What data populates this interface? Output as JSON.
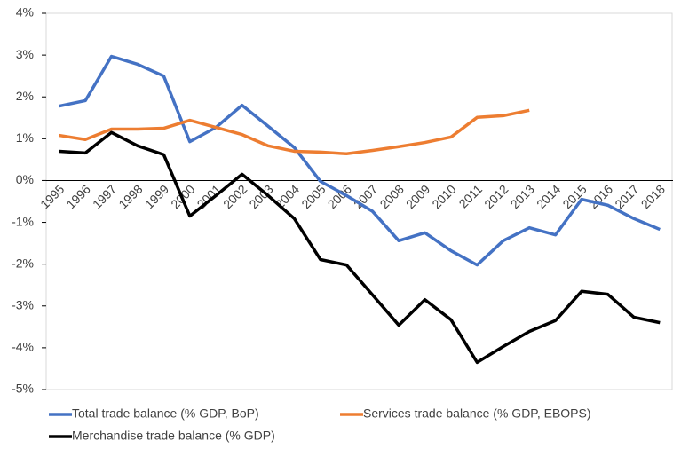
{
  "chart_data": {
    "type": "line",
    "categories": [
      "1995",
      "1996",
      "1997",
      "1998",
      "1999",
      "2000",
      "2001",
      "2002",
      "2003",
      "2004",
      "2005",
      "2006",
      "2007",
      "2008",
      "2009",
      "2010",
      "2011",
      "2012",
      "2013",
      "2014",
      "2015",
      "2016",
      "2017",
      "2018"
    ],
    "series": [
      {
        "name": "Total trade balance (% GDP, BoP)",
        "color": "#4472c4",
        "values": [
          1.78,
          1.91,
          2.97,
          2.78,
          2.5,
          0.93,
          1.27,
          1.8,
          1.3,
          0.79,
          -0.02,
          -0.36,
          -0.74,
          -1.44,
          -1.25,
          -1.68,
          -2.02,
          -1.44,
          -1.13,
          -1.3,
          -0.45,
          -0.59,
          -0.91,
          -1.17
        ]
      },
      {
        "name": "Services trade balance (% GDP, EBOPS)",
        "color": "#ed7d31",
        "values": [
          1.08,
          0.98,
          1.23,
          1.23,
          1.25,
          1.44,
          1.27,
          1.1,
          0.83,
          0.7,
          0.68,
          0.64,
          0.72,
          0.81,
          0.91,
          1.04,
          1.51,
          1.55,
          1.68,
          null,
          null,
          null,
          null,
          null
        ]
      },
      {
        "name": "Merchandise trade balance (% GDP)",
        "color": "#000000",
        "values": [
          0.7,
          0.66,
          1.15,
          0.83,
          0.62,
          -0.85,
          -0.36,
          0.15,
          -0.36,
          -0.91,
          -1.89,
          -2.02,
          -2.74,
          -3.46,
          -2.85,
          -3.33,
          -4.35,
          -3.97,
          -3.61,
          -3.35,
          -2.65,
          -2.72,
          -3.27,
          -3.4
        ]
      }
    ],
    "ylim": [
      -5,
      4
    ],
    "yticks": [
      {
        "value": -5,
        "label": "-5%"
      },
      {
        "value": -4,
        "label": "-4%"
      },
      {
        "value": -3,
        "label": "-3%"
      },
      {
        "value": -2,
        "label": "-2%"
      },
      {
        "value": -1,
        "label": "-1%"
      },
      {
        "value": 0,
        "label": "0%"
      },
      {
        "value": 1,
        "label": "1%"
      },
      {
        "value": 2,
        "label": "2%"
      },
      {
        "value": 3,
        "label": "3%"
      },
      {
        "value": 4,
        "label": "4%"
      }
    ],
    "grid": false
  }
}
